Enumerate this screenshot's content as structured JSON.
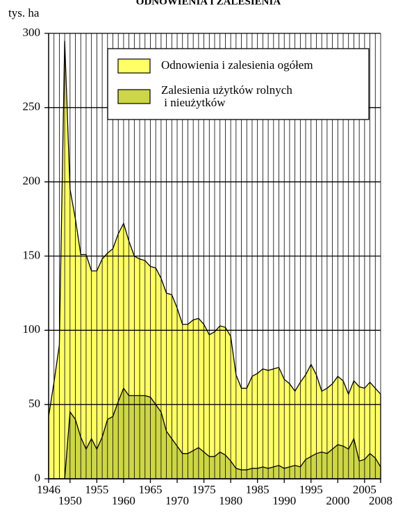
{
  "chart_data": {
    "type": "area",
    "title": "ODNOWIENIA I ZALESIENIA",
    "ylabel": "tys. ha",
    "x": [
      1946,
      1947,
      1948,
      1949,
      1950,
      1951,
      1952,
      1953,
      1954,
      1955,
      1956,
      1957,
      1958,
      1959,
      1960,
      1961,
      1962,
      1963,
      1964,
      1965,
      1966,
      1967,
      1968,
      1969,
      1970,
      1971,
      1972,
      1973,
      1974,
      1975,
      1976,
      1977,
      1978,
      1979,
      1980,
      1981,
      1982,
      1983,
      1984,
      1985,
      1986,
      1987,
      1988,
      1989,
      1990,
      1991,
      1992,
      1993,
      1994,
      1995,
      1996,
      1997,
      1998,
      1999,
      2000,
      2001,
      2002,
      2003,
      2004,
      2005,
      2006,
      2007,
      2008
    ],
    "series": [
      {
        "name": "Odnowienia i zalesienia ogółem",
        "color": "#ffff66",
        "values": [
          42,
          65,
          90,
          295,
          195,
          175,
          151,
          151,
          140,
          140,
          148,
          152,
          155,
          165,
          172,
          160,
          150,
          148,
          147,
          143,
          142,
          135,
          125,
          124,
          115,
          104,
          104,
          107,
          108,
          104,
          97,
          99,
          103,
          102,
          96,
          70,
          61,
          61,
          69,
          71,
          74,
          73,
          74,
          75,
          67,
          64,
          59,
          65,
          70,
          77,
          70,
          59,
          61,
          64,
          69,
          66,
          57,
          66,
          62,
          61,
          65,
          61,
          57
        ]
      },
      {
        "name": "Zalesienia użytków rolnych\n i nieużytków",
        "color": "#cdd645",
        "values": [
          0,
          0,
          0,
          0,
          45,
          40,
          28,
          20,
          27,
          20,
          28,
          40,
          42,
          52,
          61,
          56,
          56,
          56,
          56,
          55,
          50,
          45,
          32,
          27,
          22,
          17,
          17,
          19,
          21,
          18,
          15,
          15,
          18,
          16,
          12,
          7,
          6,
          6,
          7,
          7,
          8,
          7,
          8,
          9,
          7,
          8,
          9,
          8,
          13,
          15,
          17,
          18,
          17,
          20,
          23,
          22,
          20,
          27,
          12,
          13,
          17,
          14,
          8
        ]
      }
    ],
    "xlim": [
      1946,
      2008
    ],
    "xticks": [
      1946,
      1950,
      1955,
      1960,
      1965,
      1970,
      1975,
      1980,
      1985,
      1990,
      1995,
      2000,
      2005,
      2008
    ],
    "ylim": [
      0,
      300
    ],
    "yticks": [
      0,
      50,
      100,
      150,
      200,
      250,
      300
    ],
    "grid": true
  }
}
